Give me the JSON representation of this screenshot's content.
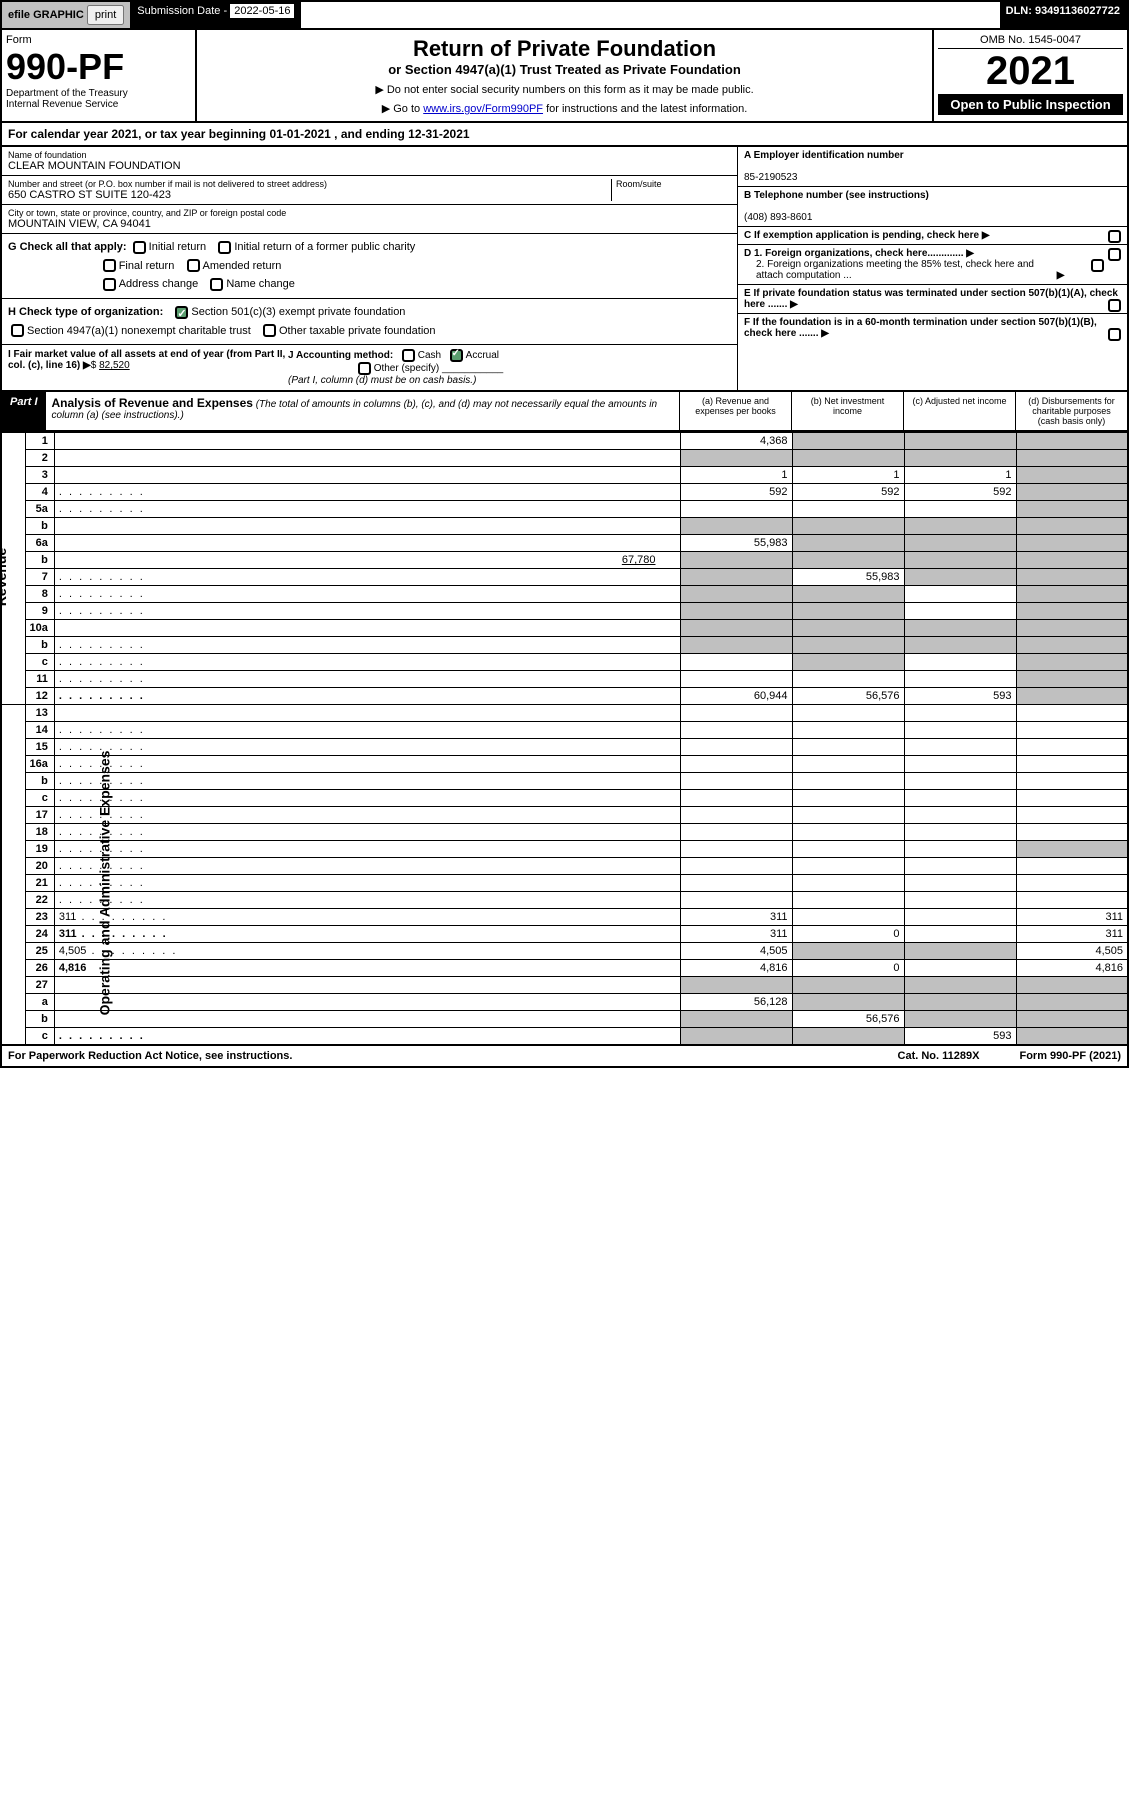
{
  "topbar": {
    "efile_label": "efile GRAPHIC",
    "print_btn": "print",
    "subdate_label": "Submission Date - ",
    "subdate_value": "2022-05-16",
    "dln": "DLN: 93491136027722"
  },
  "header": {
    "form_word": "Form",
    "form_num": "990-PF",
    "dept": "Department of the Treasury",
    "irs": "Internal Revenue Service",
    "title": "Return of Private Foundation",
    "subtitle": "or Section 4947(a)(1) Trust Treated as Private Foundation",
    "note1": "▶ Do not enter social security numbers on this form as it may be made public.",
    "note2_pre": "▶ Go to ",
    "note2_link": "www.irs.gov/Form990PF",
    "note2_post": " for instructions and the latest information.",
    "omb": "OMB No. 1545-0047",
    "year": "2021",
    "inspect": "Open to Public Inspection"
  },
  "calendar": "For calendar year 2021, or tax year beginning 01-01-2021                               , and ending 12-31-2021",
  "info": {
    "name_label": "Name of foundation",
    "name": "CLEAR MOUNTAIN FOUNDATION",
    "addr_label": "Number and street (or P.O. box number if mail is not delivered to street address)",
    "addr": "650 CASTRO ST SUITE 120-423",
    "room_label": "Room/suite",
    "city_label": "City or town, state or province, country, and ZIP or foreign postal code",
    "city": "MOUNTAIN VIEW, CA  94041",
    "ein_label": "A Employer identification number",
    "ein": "85-2190523",
    "phone_label": "B Telephone number (see instructions)",
    "phone": "(408) 893-8601",
    "c_label": "C If exemption application is pending, check here",
    "d1": "D 1. Foreign organizations, check here.............",
    "d2": "2. Foreign organizations meeting the 85% test, check here and attach computation ...",
    "e": "E  If private foundation status was terminated under section 507(b)(1)(A), check here .......",
    "f": "F  If the foundation is in a 60-month termination under section 507(b)(1)(B), check here .......",
    "g_label": "G Check all that apply:",
    "g_opts": [
      "Initial return",
      "Initial return of a former public charity",
      "Final return",
      "Amended return",
      "Address change",
      "Name change"
    ],
    "h_label": "H Check type of organization:",
    "h_opt1": "Section 501(c)(3) exempt private foundation",
    "h_opt2": "Section 4947(a)(1) nonexempt charitable trust",
    "h_opt3": "Other taxable private foundation",
    "i_label": "I Fair market value of all assets at end of year (from Part II, col. (c), line 16)",
    "i_value": "82,520",
    "j_label": "J Accounting method:",
    "j_cash": "Cash",
    "j_accrual": "Accrual",
    "j_other": "Other (specify)",
    "j_note": "(Part I, column (d) must be on cash basis.)"
  },
  "part1": {
    "label": "Part I",
    "title": "Analysis of Revenue and Expenses",
    "subtitle": "(The total of amounts in columns (b), (c), and (d) may not necessarily equal the amounts in column (a) (see instructions).)",
    "col_a": "(a)   Revenue and expenses per books",
    "col_b": "(b)   Net investment income",
    "col_c": "(c)   Adjusted net income",
    "col_d": "(d)   Disbursements for charitable purposes (cash basis only)"
  },
  "side": {
    "revenue": "Revenue",
    "expenses": "Operating and Administrative Expenses"
  },
  "rows": [
    {
      "n": "1",
      "d": "",
      "a": "4,368",
      "b": "",
      "c": "",
      "shade": [
        "b",
        "c",
        "d"
      ]
    },
    {
      "n": "2",
      "d": "",
      "a": "",
      "b": "",
      "c": "",
      "shade": [
        "a",
        "b",
        "c",
        "d"
      ],
      "bold_not": true
    },
    {
      "n": "3",
      "d": "",
      "a": "1",
      "b": "1",
      "c": "1",
      "shade": [
        "d"
      ]
    },
    {
      "n": "4",
      "d": "",
      "a": "592",
      "b": "592",
      "c": "592",
      "shade": [
        "d"
      ],
      "dots": true
    },
    {
      "n": "5a",
      "d": "",
      "a": "",
      "b": "",
      "c": "",
      "shade": [
        "d"
      ],
      "dots": true
    },
    {
      "n": "b",
      "d": "",
      "a": "",
      "b": "",
      "c": "",
      "shade": [
        "a",
        "b",
        "c",
        "d"
      ],
      "inline": true
    },
    {
      "n": "6a",
      "d": "",
      "a": "55,983",
      "b": "",
      "c": "",
      "shade": [
        "b",
        "c",
        "d"
      ]
    },
    {
      "n": "b",
      "d": "",
      "a": "",
      "b": "",
      "c": "",
      "shade": [
        "a",
        "b",
        "c",
        "d"
      ],
      "inline": true,
      "inlineval": "67,780"
    },
    {
      "n": "7",
      "d": "",
      "a": "",
      "b": "55,983",
      "c": "",
      "shade": [
        "a",
        "c",
        "d"
      ],
      "dots": true
    },
    {
      "n": "8",
      "d": "",
      "a": "",
      "b": "",
      "c": "",
      "shade": [
        "a",
        "b",
        "d"
      ],
      "dots": true
    },
    {
      "n": "9",
      "d": "",
      "a": "",
      "b": "",
      "c": "",
      "shade": [
        "a",
        "b",
        "d"
      ],
      "dots": true
    },
    {
      "n": "10a",
      "d": "",
      "a": "",
      "b": "",
      "c": "",
      "shade": [
        "a",
        "b",
        "c",
        "d"
      ],
      "inline": true
    },
    {
      "n": "b",
      "d": "",
      "a": "",
      "b": "",
      "c": "",
      "shade": [
        "a",
        "b",
        "c",
        "d"
      ],
      "inline": true,
      "dots": true
    },
    {
      "n": "c",
      "d": "",
      "a": "",
      "b": "",
      "c": "",
      "shade": [
        "b",
        "d"
      ],
      "dots": true
    },
    {
      "n": "11",
      "d": "",
      "a": "",
      "b": "",
      "c": "",
      "shade": [
        "d"
      ],
      "dots": true
    },
    {
      "n": "12",
      "d": "",
      "a": "60,944",
      "b": "56,576",
      "c": "593",
      "shade": [
        "d"
      ],
      "bold": true,
      "dots": true
    },
    {
      "n": "13",
      "d": "",
      "a": "",
      "b": "",
      "c": ""
    },
    {
      "n": "14",
      "d": "",
      "a": "",
      "b": "",
      "c": "",
      "dots": true
    },
    {
      "n": "15",
      "d": "",
      "a": "",
      "b": "",
      "c": "",
      "dots": true
    },
    {
      "n": "16a",
      "d": "",
      "a": "",
      "b": "",
      "c": "",
      "dots": true
    },
    {
      "n": "b",
      "d": "",
      "a": "",
      "b": "",
      "c": "",
      "dots": true
    },
    {
      "n": "c",
      "d": "",
      "a": "",
      "b": "",
      "c": "",
      "dots": true
    },
    {
      "n": "17",
      "d": "",
      "a": "",
      "b": "",
      "c": "",
      "dots": true
    },
    {
      "n": "18",
      "d": "",
      "a": "",
      "b": "",
      "c": "",
      "dots": true
    },
    {
      "n": "19",
      "d": "",
      "a": "",
      "b": "",
      "c": "",
      "shade": [
        "d"
      ],
      "dots": true
    },
    {
      "n": "20",
      "d": "",
      "a": "",
      "b": "",
      "c": "",
      "dots": true
    },
    {
      "n": "21",
      "d": "",
      "a": "",
      "b": "",
      "c": "",
      "dots": true
    },
    {
      "n": "22",
      "d": "",
      "a": "",
      "b": "",
      "c": "",
      "dots": true
    },
    {
      "n": "23",
      "d": "311",
      "a": "311",
      "b": "",
      "c": "",
      "dots": true,
      "icon": true
    },
    {
      "n": "24",
      "d": "311",
      "a": "311",
      "b": "0",
      "c": "",
      "bold": true,
      "dots": true
    },
    {
      "n": "25",
      "d": "4,505",
      "a": "4,505",
      "b": "",
      "c": "",
      "shade": [
        "b",
        "c"
      ],
      "dots": true
    },
    {
      "n": "26",
      "d": "4,816",
      "a": "4,816",
      "b": "0",
      "c": "",
      "bold": true
    },
    {
      "n": "27",
      "d": "",
      "a": "",
      "b": "",
      "c": "",
      "shade": [
        "a",
        "b",
        "c",
        "d"
      ]
    },
    {
      "n": "a",
      "d": "",
      "a": "56,128",
      "b": "",
      "c": "",
      "shade": [
        "b",
        "c",
        "d"
      ],
      "bold": true
    },
    {
      "n": "b",
      "d": "",
      "a": "",
      "b": "56,576",
      "c": "",
      "shade": [
        "a",
        "c",
        "d"
      ],
      "bold": true
    },
    {
      "n": "c",
      "d": "",
      "a": "",
      "b": "",
      "c": "593",
      "shade": [
        "a",
        "b",
        "d"
      ],
      "bold": true,
      "dots": true
    }
  ],
  "footer": {
    "left": "For Paperwork Reduction Act Notice, see instructions.",
    "cat": "Cat. No. 11289X",
    "form": "Form 990-PF (2021)"
  }
}
